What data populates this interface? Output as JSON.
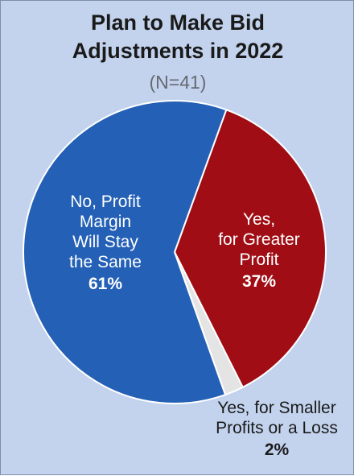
{
  "header": {
    "title_line1": "Plan to Make Bid",
    "title_line2": "Adjustments in 2022",
    "subtitle": "(N=41)"
  },
  "chart_data": {
    "type": "pie",
    "title": "Plan to Make Bid Adjustments in 2022",
    "subtitle": "(N=41)",
    "slices": [
      {
        "label_lines": [
          "Yes,",
          "for Greater",
          "Profit"
        ],
        "percent_label": "37%",
        "value": 37,
        "color": "#a00d14",
        "text_color": "#ffffff"
      },
      {
        "label_lines": [
          "Yes, for Smaller",
          "Profits or a Loss"
        ],
        "percent_label": "2%",
        "value": 2,
        "color": "#e4e4e4",
        "text_color": "#1a1a1a"
      },
      {
        "label_lines": [
          "No, Profit",
          "Margin",
          "Will Stay",
          "the Same"
        ],
        "percent_label": "61%",
        "value": 61,
        "color": "#2460b6",
        "text_color": "#ffffff"
      }
    ]
  }
}
